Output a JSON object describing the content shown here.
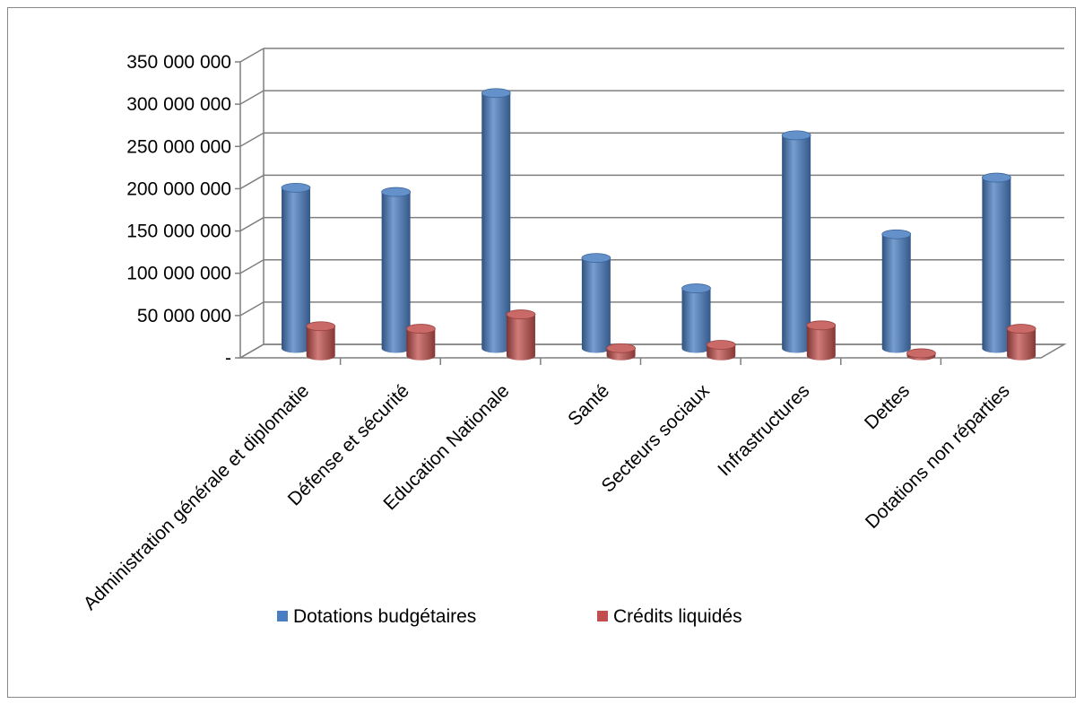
{
  "chart_data": {
    "type": "bar",
    "categories": [
      "Administration générale et diplomatie",
      "Défense et sécurité",
      "Education Nationale",
      "Santé",
      "Secteurs sociaux",
      "Infrastructures",
      "Dettes",
      "Dotations non réparties"
    ],
    "series": [
      {
        "name": "Dotations  budgétaires",
        "color": "#4a7ec2",
        "values": [
          190000000,
          185000000,
          302000000,
          107000000,
          71000000,
          252000000,
          135000000,
          202000000
        ]
      },
      {
        "name": "Crédits liquidés",
        "color": "#c0504d",
        "values": [
          35000000,
          32000000,
          49000000,
          9000000,
          13000000,
          36000000,
          3000000,
          32000000
        ]
      }
    ],
    "ylim": [
      0,
      350000000
    ],
    "yticks": [
      0,
      50000000,
      100000000,
      150000000,
      200000000,
      250000000,
      300000000,
      350000000
    ],
    "ytick_labels": [
      "-",
      "50 000 000",
      "100 000 000",
      "150 000 000",
      "200 000 000",
      "250 000 000",
      "300 000 000",
      "350 000 000"
    ],
    "grid": true,
    "legend_position": "bottom",
    "title": "",
    "xlabel": "",
    "ylabel": "",
    "style": "3d-cylinder"
  }
}
